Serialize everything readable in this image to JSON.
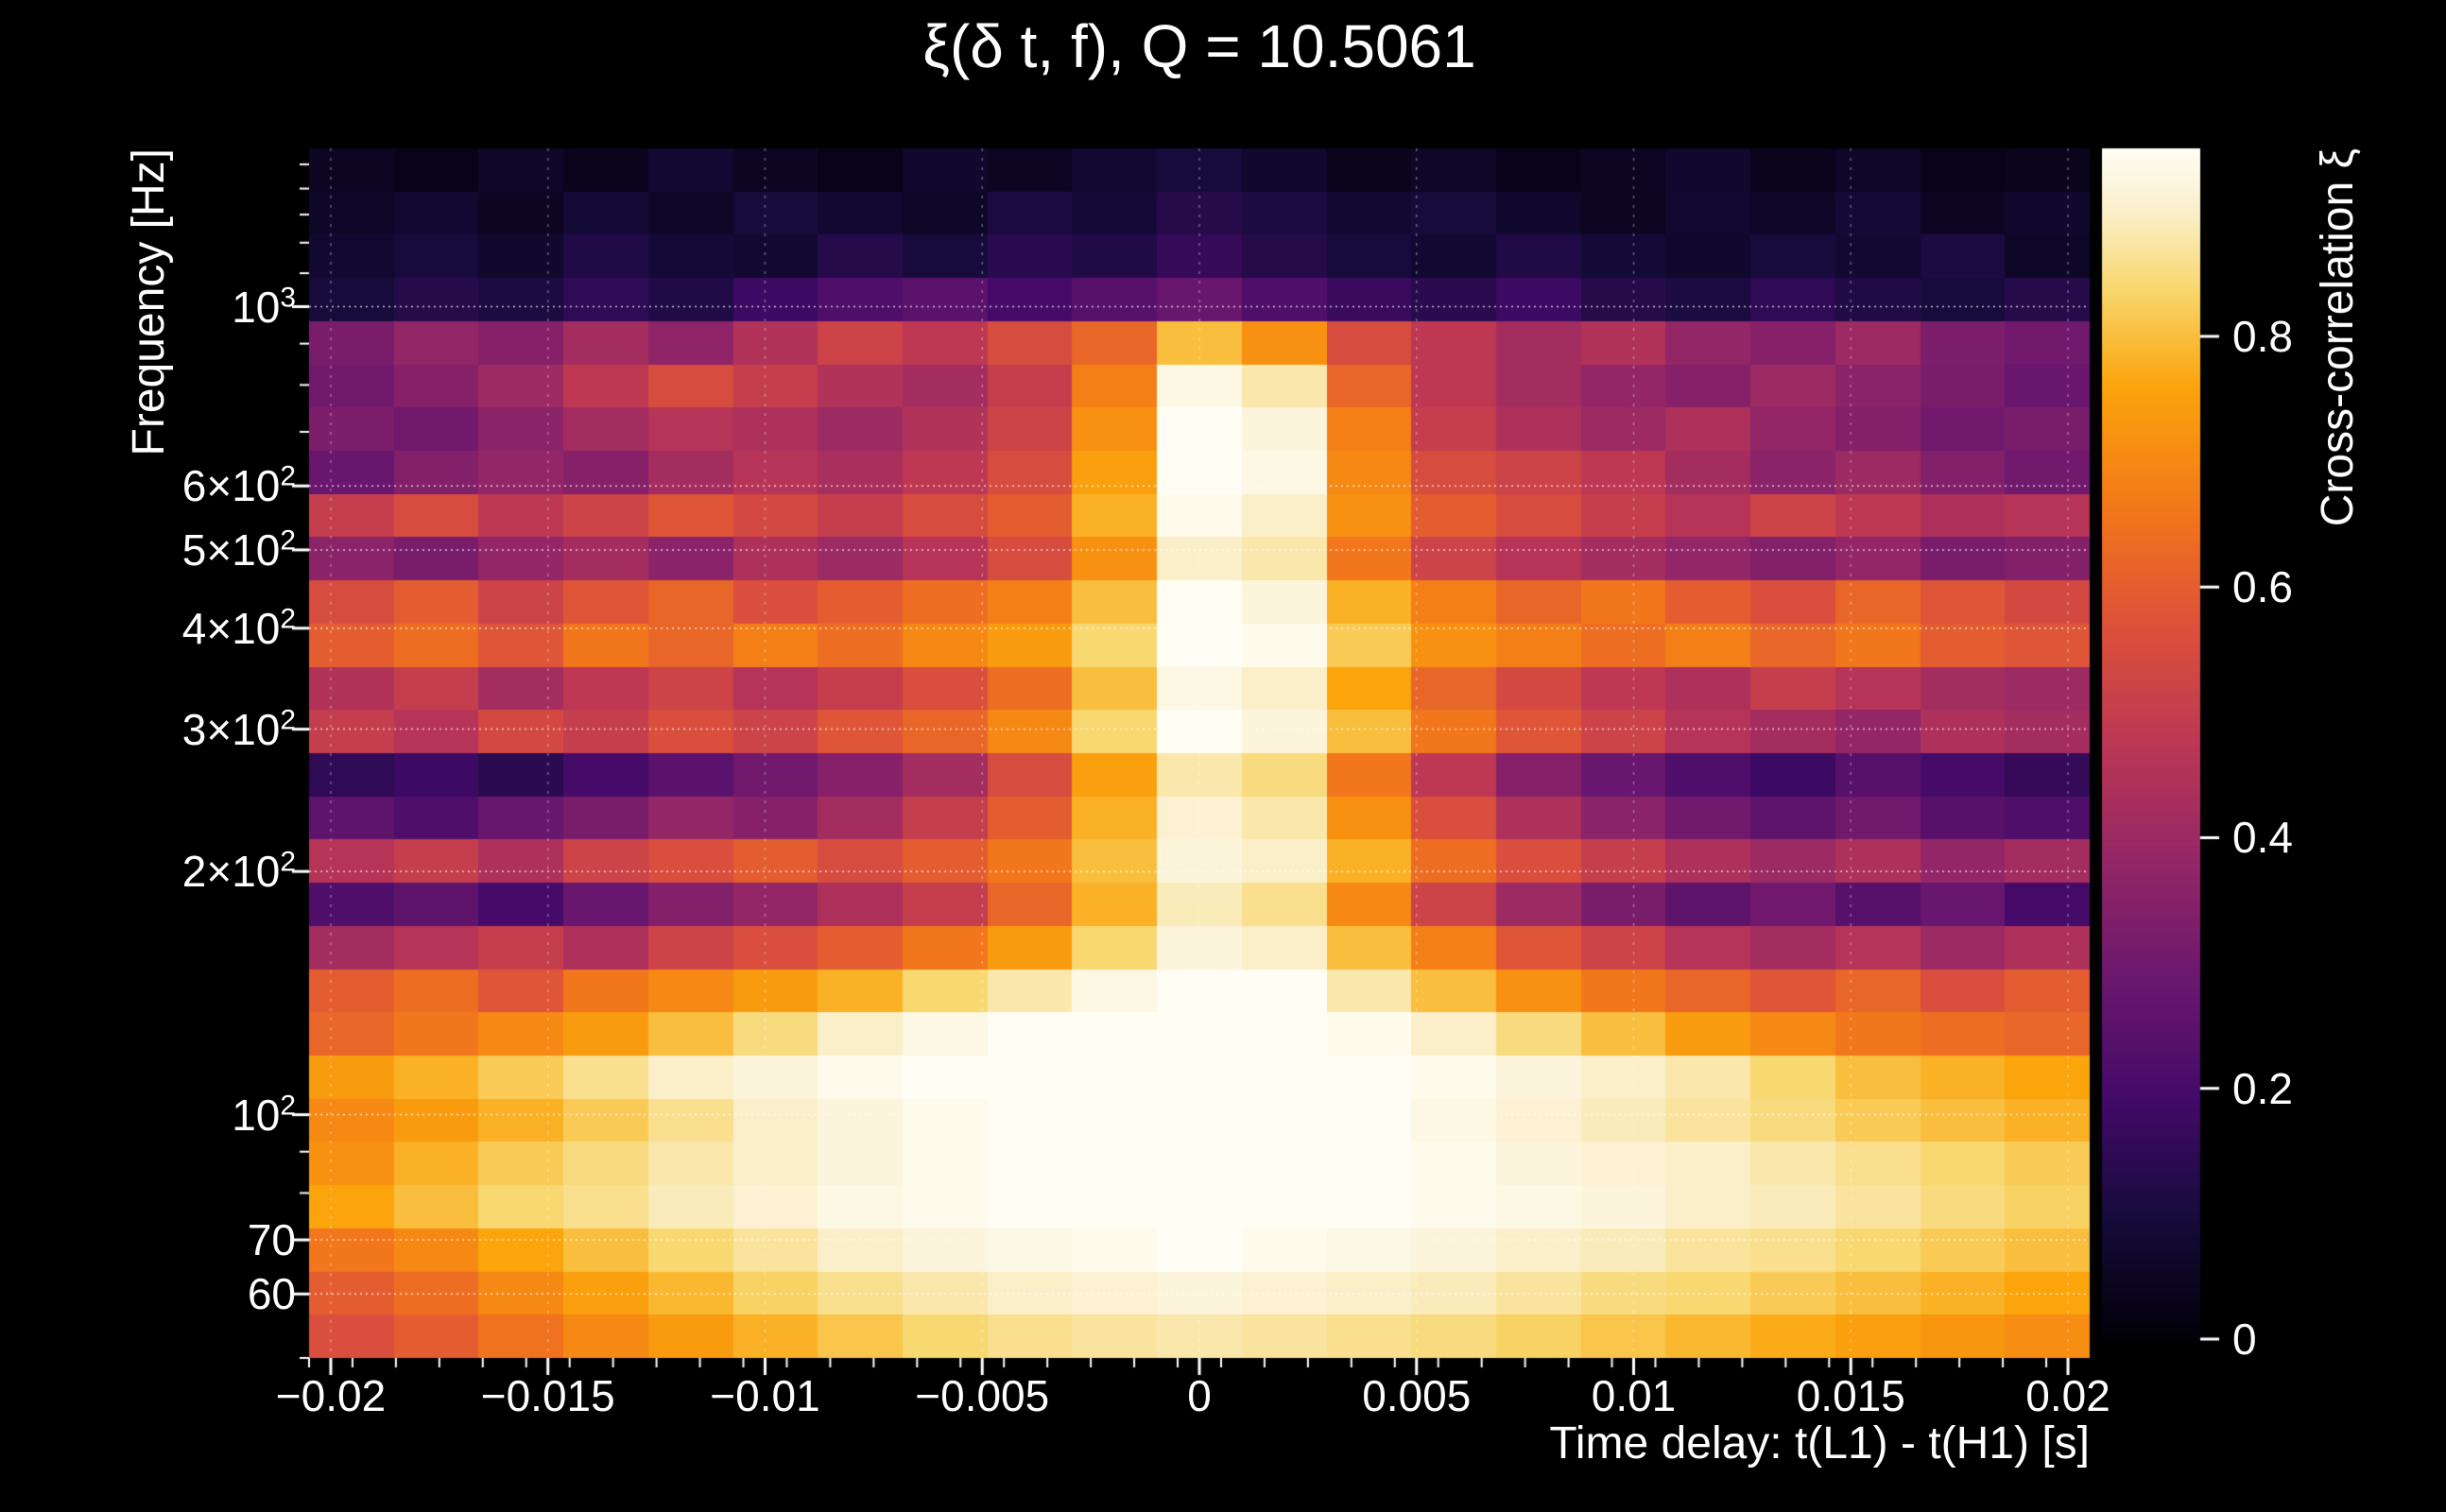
{
  "chart": {
    "title": "ξ(δ t, f), Q = 10.5061",
    "xlabel": "Time delay: t(L1) - t(H1) [s]",
    "ylabel": "Frequency [Hz]",
    "colorbar_label": "Cross-correlation ξ"
  },
  "colors": {
    "background": "#000000",
    "text": "#ffffff",
    "grid": "#ffffff"
  },
  "chart_data": {
    "type": "heatmap",
    "x_range": [
      -0.0205,
      0.0205
    ],
    "y_range_hz": [
      50,
      1570
    ],
    "y_scale": "log",
    "value_range": [
      0,
      0.95
    ],
    "x_ticks": [
      {
        "v": -0.02,
        "label": "−0.02"
      },
      {
        "v": -0.015,
        "label": "−0.015"
      },
      {
        "v": -0.01,
        "label": "−0.01"
      },
      {
        "v": -0.005,
        "label": "−0.005"
      },
      {
        "v": 0,
        "label": "0"
      },
      {
        "v": 0.005,
        "label": "0.005"
      },
      {
        "v": 0.01,
        "label": "0.01"
      },
      {
        "v": 0.015,
        "label": "0.015"
      },
      {
        "v": 0.02,
        "label": "0.02"
      }
    ],
    "x_minor_step": 0.001,
    "y_ticks": [
      {
        "v": 1000,
        "base": "10",
        "exp": "3"
      },
      {
        "v": 600,
        "base": "6×10",
        "exp": "2"
      },
      {
        "v": 500,
        "base": "5×10",
        "exp": "2"
      },
      {
        "v": 400,
        "base": "4×10",
        "exp": "2"
      },
      {
        "v": 300,
        "base": "3×10",
        "exp": "2"
      },
      {
        "v": 200,
        "base": "2×10",
        "exp": "2"
      },
      {
        "v": 100,
        "base": "10",
        "exp": "2"
      },
      {
        "v": 70,
        "base": "70",
        "exp": ""
      },
      {
        "v": 60,
        "base": "60",
        "exp": ""
      }
    ],
    "y_minor_ticks": [
      50,
      80,
      90,
      700,
      800,
      900,
      1100,
      1200,
      1300,
      1400,
      1500
    ],
    "colorbar_ticks": [
      {
        "v": 0,
        "label": "0"
      },
      {
        "v": 0.2,
        "label": "0.2"
      },
      {
        "v": 0.4,
        "label": "0.4"
      },
      {
        "v": 0.6,
        "label": "0.6"
      },
      {
        "v": 0.8,
        "label": "0.8"
      }
    ],
    "colormap_stops": [
      {
        "v": 0,
        "c": "#020008"
      },
      {
        "v": 0.1,
        "c": "#150b3a"
      },
      {
        "v": 0.2,
        "c": "#420a68"
      },
      {
        "v": 0.3,
        "c": "#6a176e"
      },
      {
        "v": 0.4,
        "c": "#932667"
      },
      {
        "v": 0.5,
        "c": "#bc3754"
      },
      {
        "v": 0.6,
        "c": "#dd513a"
      },
      {
        "v": 0.7,
        "c": "#f37819"
      },
      {
        "v": 0.8,
        "c": "#fba40c"
      },
      {
        "v": 0.88,
        "c": "#f8d66a"
      },
      {
        "v": 0.95,
        "c": "#fbf0cd"
      },
      {
        "v": 1,
        "c": "#fffdf4"
      }
    ],
    "columns_delay_s": [
      -0.02,
      -0.018,
      -0.016,
      -0.014,
      -0.012,
      -0.01,
      -0.008,
      -0.006,
      -0.004,
      -0.002,
      0,
      0.002,
      0.004,
      0.006,
      0.008,
      0.01,
      0.012,
      0.014,
      0.016,
      0.018,
      0.02
    ],
    "rows_freq_hz": [
      1480,
      1310,
      1160,
      1025,
      905,
      800,
      710,
      625,
      555,
      490,
      435,
      385,
      340,
      300,
      265,
      235,
      208,
      184,
      163,
      144,
      127,
      113,
      100,
      88,
      78,
      69,
      61,
      54
    ],
    "values": [
      [
        0.05,
        0.03,
        0.06,
        0.04,
        0.08,
        0.05,
        0.03,
        0.07,
        0.05,
        0.08,
        0.1,
        0.07,
        0.04,
        0.06,
        0.03,
        0.05,
        0.07,
        0.04,
        0.06,
        0.03,
        0.04
      ],
      [
        0.06,
        0.08,
        0.05,
        0.09,
        0.06,
        0.1,
        0.08,
        0.06,
        0.11,
        0.09,
        0.13,
        0.11,
        0.08,
        0.1,
        0.07,
        0.05,
        0.08,
        0.06,
        0.09,
        0.05,
        0.07
      ],
      [
        0.08,
        0.1,
        0.07,
        0.12,
        0.09,
        0.08,
        0.13,
        0.1,
        0.14,
        0.12,
        0.16,
        0.13,
        0.1,
        0.08,
        0.12,
        0.09,
        0.07,
        0.1,
        0.08,
        0.11,
        0.06
      ],
      [
        0.1,
        0.13,
        0.11,
        0.15,
        0.12,
        0.18,
        0.22,
        0.25,
        0.2,
        0.24,
        0.28,
        0.22,
        0.17,
        0.14,
        0.18,
        0.13,
        0.11,
        0.15,
        0.12,
        0.1,
        0.13
      ],
      [
        0.32,
        0.38,
        0.35,
        0.42,
        0.37,
        0.45,
        0.52,
        0.48,
        0.55,
        0.62,
        0.8,
        0.72,
        0.55,
        0.48,
        0.42,
        0.45,
        0.38,
        0.35,
        0.4,
        0.33,
        0.3
      ],
      [
        0.3,
        0.35,
        0.4,
        0.48,
        0.55,
        0.5,
        0.45,
        0.42,
        0.5,
        0.68,
        0.93,
        0.88,
        0.62,
        0.48,
        0.42,
        0.38,
        0.35,
        0.4,
        0.36,
        0.32,
        0.28
      ],
      [
        0.33,
        0.3,
        0.36,
        0.42,
        0.46,
        0.44,
        0.4,
        0.45,
        0.52,
        0.72,
        0.96,
        0.92,
        0.68,
        0.5,
        0.44,
        0.4,
        0.44,
        0.38,
        0.34,
        0.3,
        0.32
      ],
      [
        0.28,
        0.34,
        0.38,
        0.35,
        0.42,
        0.46,
        0.43,
        0.48,
        0.55,
        0.75,
        0.95,
        0.93,
        0.7,
        0.55,
        0.52,
        0.48,
        0.42,
        0.36,
        0.4,
        0.34,
        0.3
      ],
      [
        0.5,
        0.55,
        0.48,
        0.52,
        0.58,
        0.54,
        0.5,
        0.55,
        0.6,
        0.78,
        0.94,
        0.9,
        0.72,
        0.6,
        0.55,
        0.5,
        0.46,
        0.52,
        0.48,
        0.44,
        0.46
      ],
      [
        0.36,
        0.32,
        0.38,
        0.42,
        0.36,
        0.44,
        0.4,
        0.46,
        0.55,
        0.72,
        0.9,
        0.88,
        0.66,
        0.52,
        0.46,
        0.42,
        0.38,
        0.34,
        0.38,
        0.32,
        0.34
      ],
      [
        0.55,
        0.6,
        0.52,
        0.58,
        0.62,
        0.56,
        0.6,
        0.64,
        0.68,
        0.8,
        0.95,
        0.92,
        0.78,
        0.68,
        0.62,
        0.66,
        0.6,
        0.56,
        0.62,
        0.58,
        0.54
      ],
      [
        0.6,
        0.64,
        0.58,
        0.66,
        0.62,
        0.68,
        0.64,
        0.7,
        0.74,
        0.84,
        0.97,
        0.94,
        0.82,
        0.72,
        0.68,
        0.64,
        0.68,
        0.62,
        0.66,
        0.6,
        0.58
      ],
      [
        0.45,
        0.5,
        0.42,
        0.48,
        0.52,
        0.46,
        0.5,
        0.56,
        0.64,
        0.8,
        0.93,
        0.9,
        0.76,
        0.62,
        0.54,
        0.48,
        0.44,
        0.5,
        0.46,
        0.42,
        0.4
      ],
      [
        0.5,
        0.46,
        0.54,
        0.5,
        0.56,
        0.52,
        0.58,
        0.62,
        0.7,
        0.84,
        0.95,
        0.92,
        0.8,
        0.66,
        0.58,
        0.52,
        0.46,
        0.42,
        0.38,
        0.44,
        0.42
      ],
      [
        0.15,
        0.18,
        0.14,
        0.2,
        0.25,
        0.3,
        0.35,
        0.42,
        0.55,
        0.75,
        0.88,
        0.85,
        0.66,
        0.48,
        0.35,
        0.28,
        0.22,
        0.18,
        0.24,
        0.2,
        0.16
      ],
      [
        0.26,
        0.22,
        0.28,
        0.32,
        0.38,
        0.35,
        0.42,
        0.5,
        0.6,
        0.78,
        0.91,
        0.88,
        0.72,
        0.56,
        0.44,
        0.36,
        0.3,
        0.26,
        0.3,
        0.24,
        0.22
      ],
      [
        0.46,
        0.5,
        0.44,
        0.52,
        0.56,
        0.6,
        0.55,
        0.6,
        0.66,
        0.8,
        0.92,
        0.9,
        0.78,
        0.64,
        0.56,
        0.5,
        0.44,
        0.4,
        0.44,
        0.38,
        0.42
      ],
      [
        0.22,
        0.26,
        0.2,
        0.28,
        0.34,
        0.38,
        0.44,
        0.5,
        0.62,
        0.78,
        0.89,
        0.86,
        0.7,
        0.52,
        0.4,
        0.32,
        0.26,
        0.3,
        0.24,
        0.28,
        0.2
      ],
      [
        0.42,
        0.46,
        0.5,
        0.44,
        0.52,
        0.56,
        0.6,
        0.66,
        0.74,
        0.84,
        0.92,
        0.9,
        0.8,
        0.68,
        0.58,
        0.52,
        0.46,
        0.42,
        0.46,
        0.4,
        0.44
      ],
      [
        0.6,
        0.64,
        0.58,
        0.66,
        0.7,
        0.74,
        0.78,
        0.84,
        0.88,
        0.93,
        0.97,
        0.95,
        0.88,
        0.8,
        0.72,
        0.66,
        0.62,
        0.58,
        0.62,
        0.56,
        0.6
      ],
      [
        0.62,
        0.66,
        0.7,
        0.74,
        0.8,
        0.85,
        0.9,
        0.93,
        0.95,
        0.96,
        0.98,
        0.97,
        0.94,
        0.9,
        0.85,
        0.8,
        0.74,
        0.7,
        0.66,
        0.64,
        0.62
      ],
      [
        0.74,
        0.78,
        0.82,
        0.86,
        0.9,
        0.92,
        0.94,
        0.96,
        0.97,
        0.98,
        0.99,
        0.98,
        0.96,
        0.94,
        0.92,
        0.9,
        0.88,
        0.84,
        0.8,
        0.78,
        0.76
      ],
      [
        0.7,
        0.74,
        0.78,
        0.82,
        0.86,
        0.9,
        0.92,
        0.94,
        0.96,
        0.97,
        0.98,
        0.97,
        0.95,
        0.93,
        0.91,
        0.89,
        0.87,
        0.85,
        0.82,
        0.8,
        0.78
      ],
      [
        0.72,
        0.78,
        0.82,
        0.85,
        0.88,
        0.9,
        0.92,
        0.94,
        0.95,
        0.96,
        0.97,
        0.96,
        0.95,
        0.94,
        0.92,
        0.91,
        0.9,
        0.88,
        0.86,
        0.84,
        0.82
      ],
      [
        0.76,
        0.8,
        0.84,
        0.86,
        0.89,
        0.91,
        0.93,
        0.94,
        0.96,
        0.97,
        0.97,
        0.96,
        0.95,
        0.94,
        0.93,
        0.92,
        0.9,
        0.89,
        0.87,
        0.85,
        0.83
      ],
      [
        0.66,
        0.7,
        0.76,
        0.8,
        0.84,
        0.87,
        0.9,
        0.92,
        0.93,
        0.94,
        0.95,
        0.94,
        0.93,
        0.92,
        0.9,
        0.89,
        0.87,
        0.86,
        0.84,
        0.82,
        0.8
      ],
      [
        0.6,
        0.64,
        0.7,
        0.75,
        0.79,
        0.83,
        0.86,
        0.88,
        0.9,
        0.91,
        0.92,
        0.91,
        0.9,
        0.89,
        0.87,
        0.85,
        0.84,
        0.82,
        0.8,
        0.78,
        0.76
      ],
      [
        0.56,
        0.6,
        0.65,
        0.7,
        0.74,
        0.78,
        0.81,
        0.84,
        0.86,
        0.87,
        0.88,
        0.87,
        0.86,
        0.85,
        0.83,
        0.81,
        0.79,
        0.77,
        0.75,
        0.73,
        0.71
      ]
    ]
  }
}
